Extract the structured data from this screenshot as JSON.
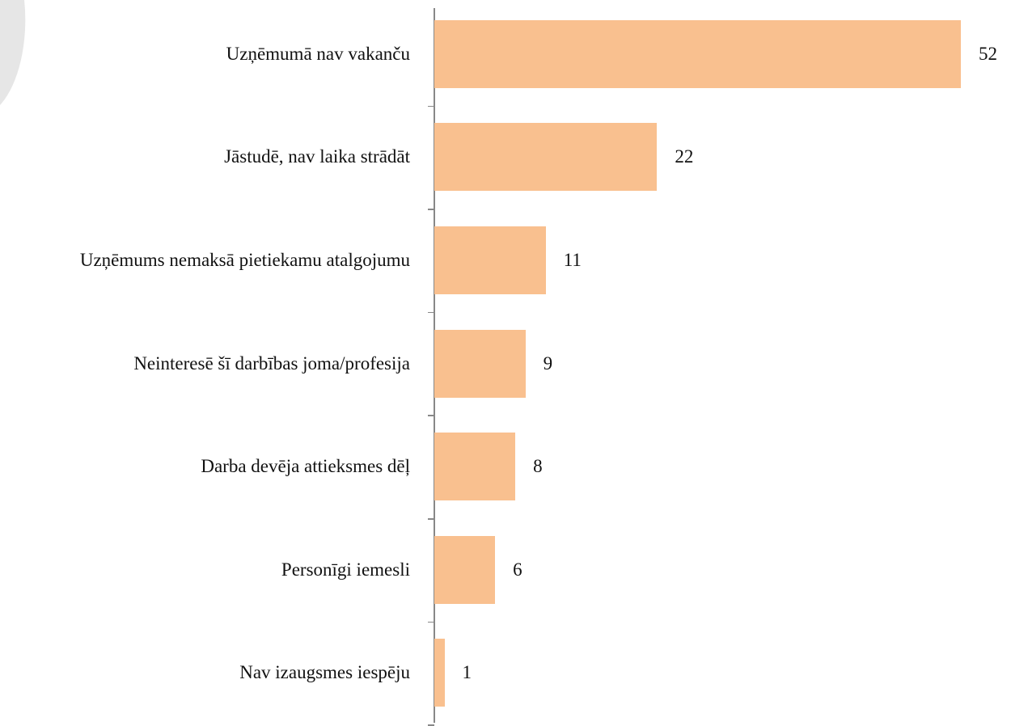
{
  "chart_data": {
    "type": "bar",
    "orientation": "horizontal",
    "categories": [
      "Uzņēmumā nav vakanču",
      "Jāstudē, nav laika strādāt",
      "Uzņēmums nemaksā pietiekamu atalgojumu",
      "Neinteresē šī darbības joma/profesija",
      "Darba devēja attieksmes dēļ",
      "Personīgi iemesli",
      "Nav izaugsmes iespēju"
    ],
    "values": [
      52,
      22,
      11,
      9,
      8,
      6,
      1
    ],
    "color": "#f9c08f"
  }
}
